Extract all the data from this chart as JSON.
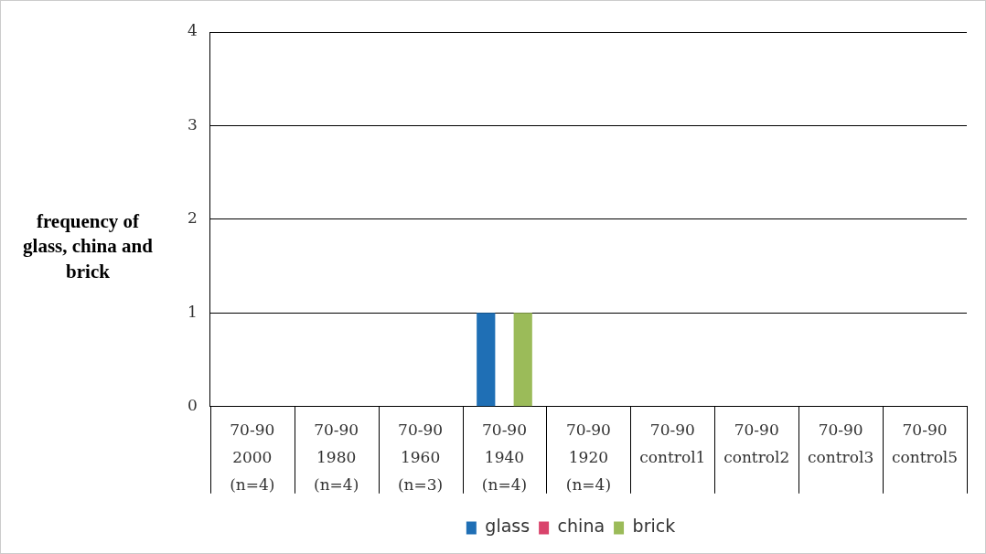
{
  "chart_data": {
    "type": "bar",
    "ylabel": "frequency of glass, china and brick",
    "categories": [
      "70-90\n2000\n(n=4)",
      "70-90\n1980\n(n=4)",
      "70-90\n1960\n(n=3)",
      "70-90\n1940\n(n=4)",
      "70-90\n1920\n(n=4)",
      "70-90\ncontrol1",
      "70-90\ncontrol2",
      "70-90\ncontrol3",
      "70-90\ncontrol5"
    ],
    "series": [
      {
        "name": "glass",
        "color": "#1f6fb5",
        "values": [
          0,
          0,
          0,
          1,
          0,
          0,
          0,
          0,
          0
        ]
      },
      {
        "name": "china",
        "color": "#d9436b",
        "values": [
          0,
          0,
          0,
          0,
          0,
          0,
          0,
          0,
          0
        ]
      },
      {
        "name": "brick",
        "color": "#9bbb59",
        "values": [
          0,
          0,
          0,
          1,
          0,
          0,
          0,
          0,
          0
        ]
      }
    ],
    "ylim": [
      0,
      4
    ],
    "yticks": [
      0,
      1,
      2,
      3,
      4
    ],
    "grid": "y",
    "legend": "bottom"
  }
}
